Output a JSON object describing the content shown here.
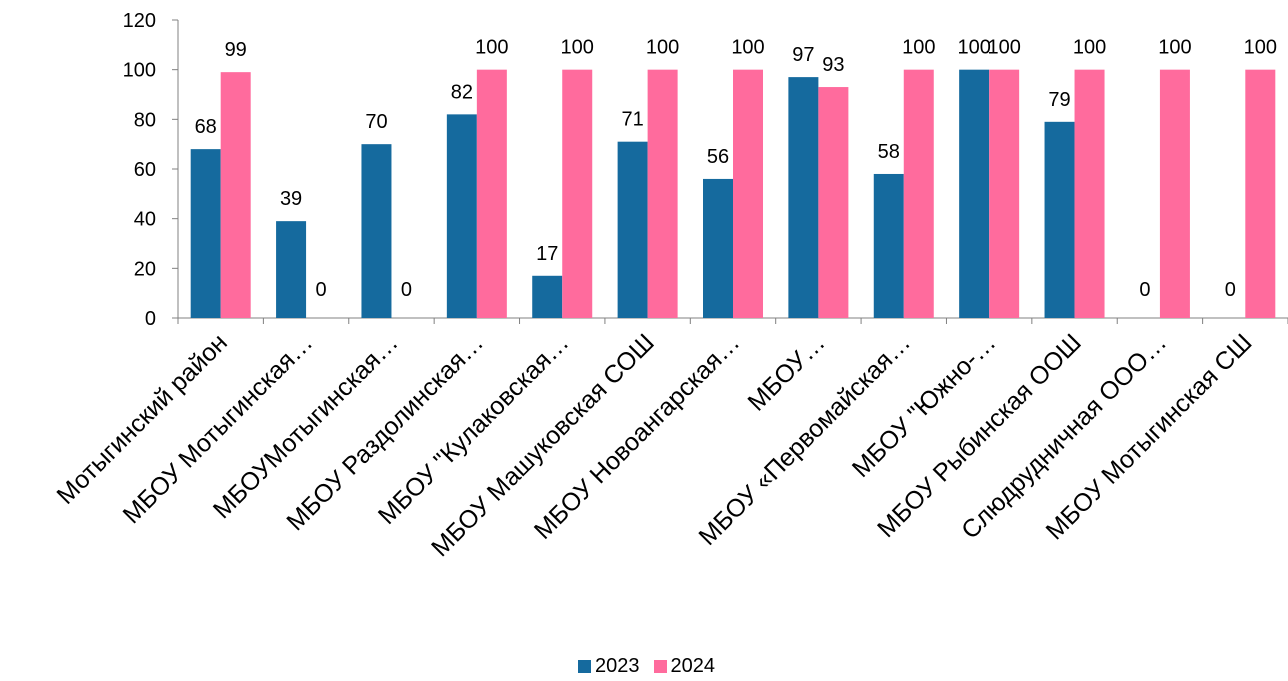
{
  "chart_data": {
    "type": "bar",
    "categories": [
      "Мотыгинский район",
      "МБОУ Мотыгинская…",
      "МБОУМотыгинская…",
      "МБОУ Раздолинская…",
      "МБОУ \"Кулаковская…",
      "МБОУ Машуковская СОШ",
      "МБОУ Новоангарская…",
      "МБОУ…",
      "МБОУ «Первомайская…",
      "МБОУ \"Южно-…",
      "МБОУ Рыбинская ООШ",
      "Слюдрудничная ООО…",
      "МБОУ Мотыгинская СШ"
    ],
    "series": [
      {
        "name": "2023",
        "color": "#156A9E",
        "values": [
          68,
          39,
          70,
          82,
          17,
          71,
          56,
          97,
          58,
          100,
          79,
          null,
          null
        ]
      },
      {
        "name": "2024",
        "color": "#FF6B9D",
        "values": [
          99,
          0,
          0,
          100,
          100,
          100,
          100,
          93,
          100,
          100,
          100,
          100,
          100
        ]
      }
    ],
    "data_labels": [
      [
        "68",
        "39",
        "70",
        "82",
        "17",
        "71",
        "56",
        "97",
        "58",
        "100",
        "79",
        "0",
        "0"
      ],
      [
        "99",
        "0",
        "0",
        "100",
        "100",
        "100",
        "100",
        "93",
        "100",
        "100",
        "100",
        "100",
        "100"
      ]
    ],
    "yticks": [
      "0",
      "20",
      "40",
      "60",
      "80",
      "100",
      "120"
    ],
    "ylim": [
      0,
      120
    ],
    "title": "",
    "xlabel": "",
    "ylabel": "",
    "grid": false,
    "legend_position": "bottom"
  }
}
